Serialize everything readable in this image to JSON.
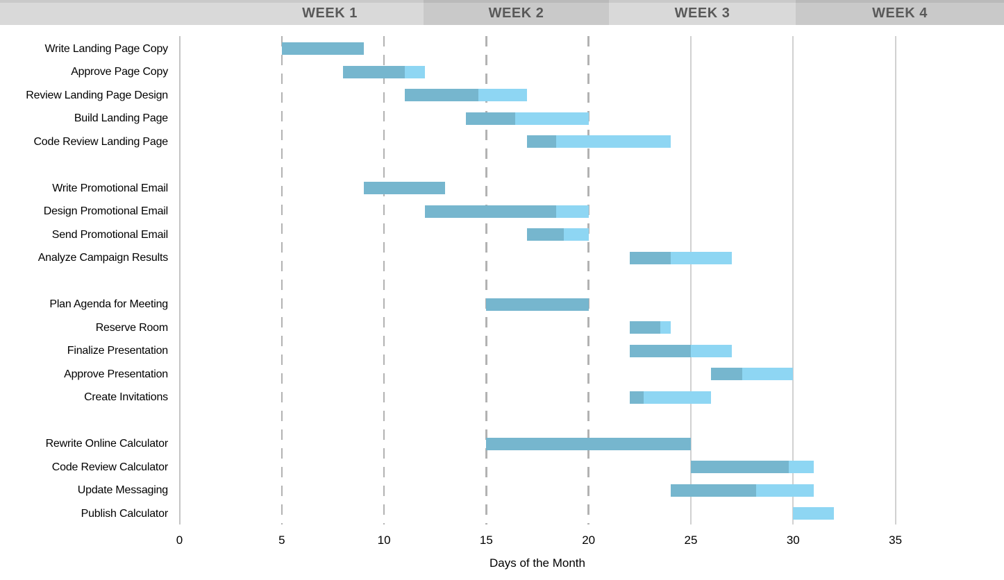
{
  "header": {
    "weeks": [
      "WEEK 1",
      "WEEK 2",
      "WEEK 3",
      "WEEK 4"
    ],
    "band_colors": {
      "light": "#D9D9D9",
      "dark": "#C9C9C9"
    },
    "text_color": "#595959"
  },
  "chart_data": {
    "type": "gantt-bar",
    "title": "",
    "xlabel": "Days of the Month",
    "x_ticks": [
      0,
      5,
      10,
      15,
      20,
      25,
      30,
      35
    ],
    "xlim": [
      0,
      40
    ],
    "grid": "vertical",
    "dashed_gridlines": [
      5,
      10,
      15,
      20
    ],
    "solid_gridlines": [
      25,
      30,
      35
    ],
    "bar_colors": {
      "completed": "#76B6CE",
      "remaining": "#8ED6F3"
    },
    "tasks": [
      {
        "name": "Write Landing Page Copy",
        "group": 1,
        "start_day": 5,
        "end_day": 9,
        "completed_through": 9
      },
      {
        "name": "Approve Page Copy",
        "group": 1,
        "start_day": 8,
        "end_day": 12,
        "completed_through": 11
      },
      {
        "name": "Review Landing Page Design",
        "group": 1,
        "start_day": 11,
        "end_day": 17,
        "completed_through": 14.6
      },
      {
        "name": "Build Landing Page",
        "group": 1,
        "start_day": 14,
        "end_day": 20,
        "completed_through": 16.4
      },
      {
        "name": "Code Review Landing Page",
        "group": 1,
        "start_day": 17,
        "end_day": 24,
        "completed_through": 18.4
      },
      {
        "name": "Write Promotional Email",
        "group": 2,
        "start_day": 9,
        "end_day": 13,
        "completed_through": 13
      },
      {
        "name": "Design Promotional Email",
        "group": 2,
        "start_day": 12,
        "end_day": 20,
        "completed_through": 18.4
      },
      {
        "name": "Send Promotional Email",
        "group": 2,
        "start_day": 17,
        "end_day": 20,
        "completed_through": 18.8
      },
      {
        "name": "Analyze Campaign Results",
        "group": 2,
        "start_day": 22,
        "end_day": 27,
        "completed_through": 24
      },
      {
        "name": "Plan Agenda for Meeting",
        "group": 3,
        "start_day": 15,
        "end_day": 20,
        "completed_through": 20
      },
      {
        "name": "Reserve Room",
        "group": 3,
        "start_day": 22,
        "end_day": 24,
        "completed_through": 23.5
      },
      {
        "name": "Finalize Presentation",
        "group": 3,
        "start_day": 22,
        "end_day": 27,
        "completed_through": 25
      },
      {
        "name": "Approve Presentation",
        "group": 3,
        "start_day": 26,
        "end_day": 30,
        "completed_through": 27.5
      },
      {
        "name": "Create Invitations",
        "group": 3,
        "start_day": 22,
        "end_day": 26,
        "completed_through": 22.7
      },
      {
        "name": "Rewrite Online Calculator",
        "group": 4,
        "start_day": 15,
        "end_day": 25,
        "completed_through": 25
      },
      {
        "name": "Code Review Calculator",
        "group": 4,
        "start_day": 25,
        "end_day": 31,
        "completed_through": 29.8
      },
      {
        "name": "Update Messaging",
        "group": 4,
        "start_day": 24,
        "end_day": 31,
        "completed_through": 28.2
      },
      {
        "name": "Publish Calculator",
        "group": 4,
        "start_day": 30,
        "end_day": 32,
        "completed_through": 30
      }
    ]
  }
}
